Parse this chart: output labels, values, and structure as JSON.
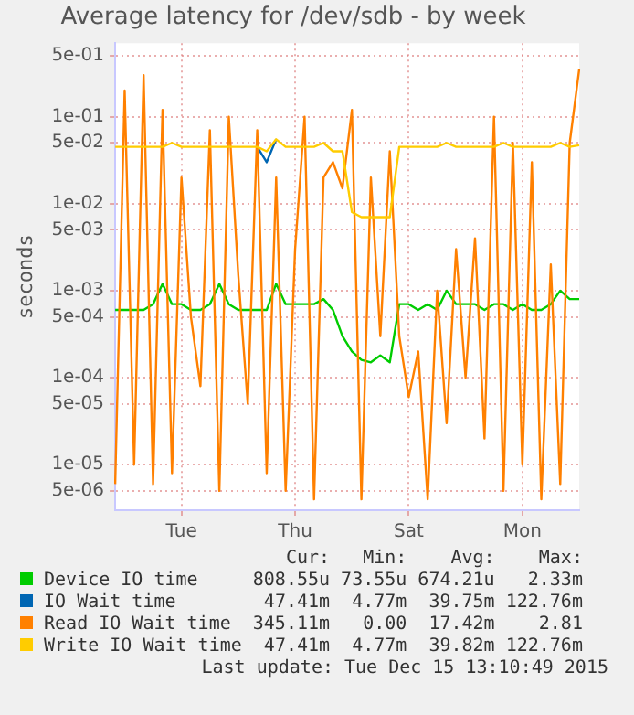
{
  "chart_data": {
    "type": "line",
    "title": "Average latency for /dev/sdb - by week",
    "ylabel": "seconds",
    "log": "y",
    "grid": true,
    "legend": "bottom",
    "marker": "none",
    "line_style": "solid",
    "categories": [
      null,
      null,
      null,
      null,
      null,
      null,
      null,
      "Tue",
      null,
      null,
      null,
      null,
      null,
      null,
      null,
      null,
      null,
      null,
      null,
      "Thu",
      null,
      null,
      null,
      null,
      null,
      null,
      null,
      null,
      null,
      null,
      null,
      "Sat",
      null,
      null,
      null,
      null,
      null,
      null,
      null,
      null,
      null,
      null,
      null,
      "Mon",
      null,
      null,
      null,
      null,
      null,
      null
    ],
    "ylim": [
      3e-06,
      0.7
    ],
    "yticks": [
      {
        "value": 0.5,
        "label": "5e-01"
      },
      {
        "value": 0.1,
        "label": "1e-01"
      },
      {
        "value": 0.05,
        "label": "5e-02"
      },
      {
        "value": 0.01,
        "label": "1e-02"
      },
      {
        "value": 0.005,
        "label": "5e-03"
      },
      {
        "value": 0.001,
        "label": "1e-03"
      },
      {
        "value": 0.0005,
        "label": "5e-04"
      },
      {
        "value": 0.0001,
        "label": "1e-04"
      },
      {
        "value": 5e-05,
        "label": "5e-05"
      },
      {
        "value": 1e-05,
        "label": "1e-05"
      },
      {
        "value": 5e-06,
        "label": "5e-06"
      }
    ],
    "series": [
      {
        "name": "Device IO time",
        "color": "#00cc00",
        "values": [
          0.0006,
          0.0006,
          0.0006,
          0.0006,
          0.0007,
          0.0012,
          0.0007,
          0.0007,
          0.0006,
          0.0006,
          0.0007,
          0.0012,
          0.0007,
          0.0006,
          0.0006,
          0.0006,
          0.0006,
          0.0012,
          0.0007,
          0.0007,
          0.0007,
          0.0007,
          0.0008,
          0.0006,
          0.0003,
          0.0002,
          0.00016,
          0.00015,
          0.00018,
          0.00015,
          0.0007,
          0.0007,
          0.0006,
          0.0007,
          0.0006,
          0.001,
          0.0007,
          0.0007,
          0.0007,
          0.0006,
          0.0007,
          0.0007,
          0.0006,
          0.0007,
          0.0006,
          0.0006,
          0.0007,
          0.001,
          0.0008,
          0.0008
        ]
      },
      {
        "name": "IO Wait time",
        "color": "#0066b3",
        "values": [
          null,
          null,
          null,
          null,
          null,
          null,
          null,
          null,
          null,
          null,
          null,
          null,
          null,
          null,
          null,
          0.045,
          0.03,
          0.055,
          null,
          null,
          null,
          null,
          null,
          null,
          null,
          null,
          null,
          null,
          null,
          null,
          null,
          null,
          null,
          null,
          null,
          null,
          null,
          null,
          null,
          null,
          null,
          null,
          null,
          null,
          null,
          null,
          null,
          null,
          null,
          null
        ]
      },
      {
        "name": "Read IO Wait time",
        "color": "#ff8000",
        "values": [
          6e-06,
          0.2,
          1e-05,
          0.3,
          6e-06,
          0.12,
          8e-06,
          0.02,
          0.0005,
          8e-05,
          0.07,
          5e-06,
          0.1,
          0.0015,
          5e-05,
          0.07,
          8e-06,
          0.02,
          5e-06,
          0.003,
          0.1,
          4e-06,
          0.02,
          0.03,
          0.015,
          0.12,
          4e-06,
          0.02,
          0.0003,
          0.04,
          0.0003,
          6e-05,
          0.0002,
          4e-06,
          0.001,
          3e-05,
          0.003,
          0.0001,
          0.004,
          2e-05,
          0.1,
          5e-06,
          0.05,
          1e-05,
          0.03,
          4e-06,
          0.002,
          6e-06,
          0.05,
          0.35
        ]
      },
      {
        "name": "Write IO Wait time",
        "color": "#ffcc00",
        "values": [
          0.045,
          0.045,
          0.045,
          0.045,
          0.045,
          0.045,
          0.05,
          0.045,
          0.045,
          0.045,
          0.045,
          0.045,
          0.045,
          0.045,
          0.045,
          0.045,
          0.04,
          0.055,
          0.045,
          0.045,
          0.045,
          0.045,
          0.05,
          0.04,
          0.04,
          0.008,
          0.007,
          0.007,
          0.007,
          0.007,
          0.045,
          0.045,
          0.045,
          0.045,
          0.045,
          0.05,
          0.045,
          0.045,
          0.045,
          0.045,
          0.045,
          0.05,
          0.045,
          0.045,
          0.045,
          0.045,
          0.045,
          0.05,
          0.045,
          0.047
        ]
      }
    ],
    "annotations": [
      "Cur:",
      "Min:",
      "Avg:",
      "Max:",
      "808.55u",
      "73.55u",
      "674.21u",
      "2.33m",
      "47.41m",
      "4.77m",
      "39.75m",
      "122.76m",
      "345.11m",
      "0.00",
      "17.42m",
      "2.81",
      "47.41m",
      "4.77m",
      "39.82m",
      "122.76m",
      "Last update: Tue Dec 15 13:10:49 2015"
    ]
  }
}
